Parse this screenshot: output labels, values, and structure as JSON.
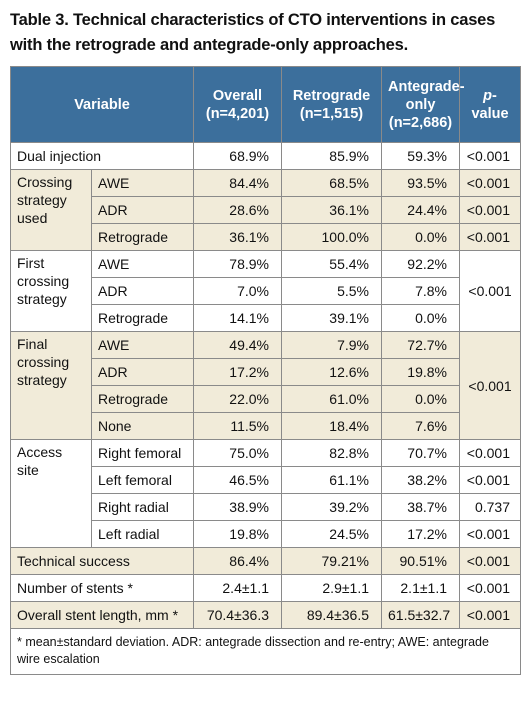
{
  "title": "Table 3. Technical characteristics of CTO interventions in cases with the retrograde and antegrade-only approaches.",
  "headers": {
    "variable": "Variable",
    "overall": "Overall",
    "overall_n": "(n=4,201)",
    "retro": "Retrograde",
    "retro_n": "(n=1,515)",
    "ante": "Antegrade-",
    "ante2": "only",
    "ante_n": "(n=2,686)",
    "p_italic": "p",
    "p_rest": "-value"
  },
  "rows": {
    "dual": {
      "label": "Dual injection",
      "overall": "68.9%",
      "retro": "85.9%",
      "ante": "59.3%",
      "p": "<0.001"
    },
    "crossing": {
      "label": "Crossing strategy used",
      "awe": {
        "sub": "AWE",
        "overall": "84.4%",
        "retro": "68.5%",
        "ante": "93.5%",
        "p": "<0.001"
      },
      "adr": {
        "sub": "ADR",
        "overall": "28.6%",
        "retro": "36.1%",
        "ante": "24.4%",
        "p": "<0.001"
      },
      "retro": {
        "sub": "Retrograde",
        "overall": "36.1%",
        "retro": "100.0%",
        "ante": "0.0%",
        "p": "<0.001"
      }
    },
    "first": {
      "label": "First crossing strategy",
      "p": "<0.001",
      "awe": {
        "sub": "AWE",
        "overall": "78.9%",
        "retro": "55.4%",
        "ante": "92.2%"
      },
      "adr": {
        "sub": "ADR",
        "overall": "7.0%",
        "retro": "5.5%",
        "ante": "7.8%"
      },
      "retro": {
        "sub": "Retrograde",
        "overall": "14.1%",
        "retro": "39.1%",
        "ante": "0.0%"
      }
    },
    "final": {
      "label": "Final crossing strategy",
      "p": "<0.001",
      "awe": {
        "sub": "AWE",
        "overall": "49.4%",
        "retro": "7.9%",
        "ante": "72.7%"
      },
      "adr": {
        "sub": "ADR",
        "overall": "17.2%",
        "retro": "12.6%",
        "ante": "19.8%"
      },
      "retro": {
        "sub": "Retrograde",
        "overall": "22.0%",
        "retro": "61.0%",
        "ante": "0.0%"
      },
      "none": {
        "sub": "None",
        "overall": "11.5%",
        "retro": "18.4%",
        "ante": "7.6%"
      }
    },
    "access": {
      "label": "Access site",
      "rf": {
        "sub": "Right femoral",
        "overall": "75.0%",
        "retro": "82.8%",
        "ante": "70.7%",
        "p": "<0.001"
      },
      "lf": {
        "sub": "Left femoral",
        "overall": "46.5%",
        "retro": "61.1%",
        "ante": "38.2%",
        "p": "<0.001"
      },
      "rr": {
        "sub": "Right radial",
        "overall": "38.9%",
        "retro": "39.2%",
        "ante": "38.7%",
        "p": "0.737"
      },
      "lr": {
        "sub": "Left radial",
        "overall": "19.8%",
        "retro": "24.5%",
        "ante": "17.2%",
        "p": "<0.001"
      }
    },
    "tech": {
      "label": "Technical success",
      "overall": "86.4%",
      "retro": "79.21%",
      "ante": "90.51%",
      "p": "<0.001"
    },
    "stents": {
      "label": "Number of stents *",
      "overall": "2.4±1.1",
      "retro": "2.9±1.1",
      "ante": "2.1±1.1",
      "p": "<0.001"
    },
    "length": {
      "label": "Overall stent length, mm *",
      "overall": "70.4±36.3",
      "retro": "89.4±36.5",
      "ante": "61.5±32.7",
      "p": "<0.001"
    }
  },
  "footnote": "* mean±standard deviation. ADR: antegrade dissection and re-entry; AWE: antegrade wire escalation"
}
